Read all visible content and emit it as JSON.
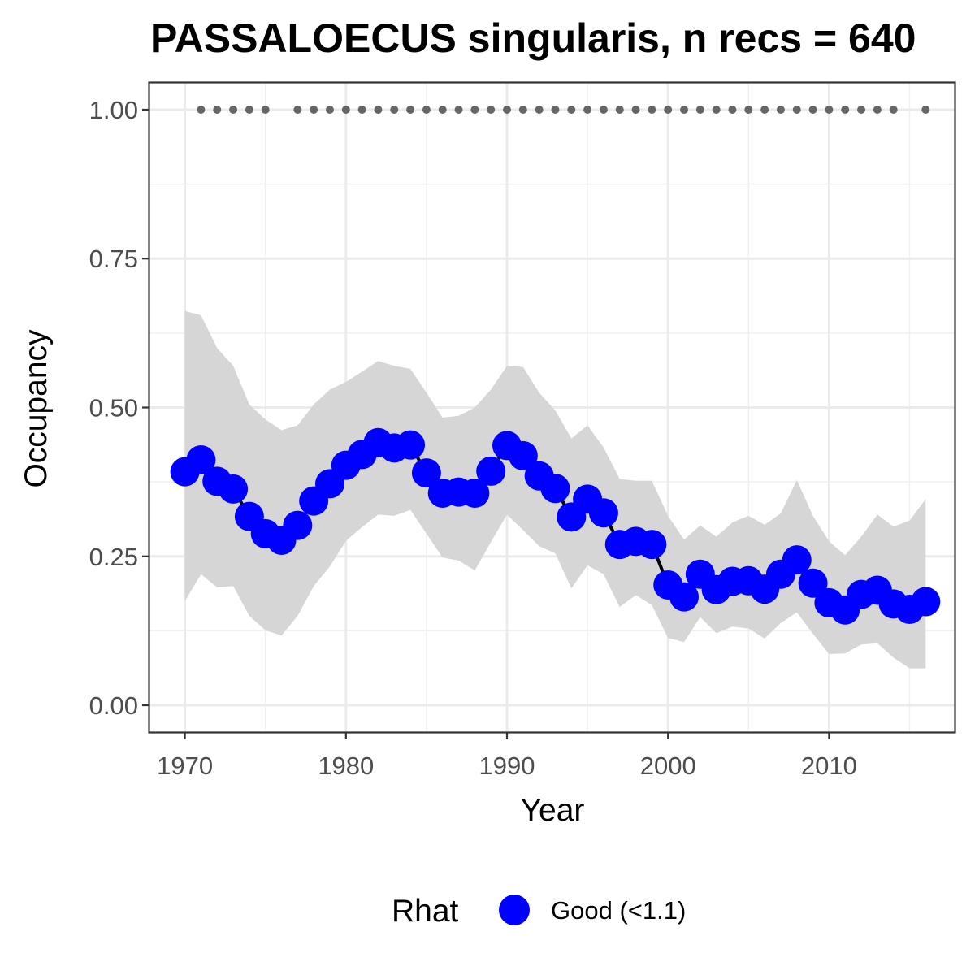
{
  "chart_data": {
    "type": "line",
    "title": "PASSALOECUS singularis, n recs = 640",
    "xlabel": "Year",
    "ylabel": "Occupancy",
    "xlim": [
      1967.8,
      2017.8
    ],
    "ylim": [
      -0.045,
      1.045
    ],
    "x_ticks": [
      1970,
      1980,
      1990,
      2000,
      2010
    ],
    "x_tick_labels": [
      "1970",
      "1980",
      "1990",
      "2000",
      "2010"
    ],
    "y_ticks": [
      0,
      0.25,
      0.5,
      0.75,
      1
    ],
    "y_tick_labels": [
      "0.00",
      "0.25",
      "0.50",
      "0.75",
      "1.00"
    ],
    "grid": true,
    "legend": {
      "position": "bottom",
      "title": "Rhat",
      "entries": [
        {
          "label": "Good (<1.1)",
          "color": "#0000ff"
        }
      ]
    },
    "colors": {
      "points": "#0000ff",
      "line": "#000000",
      "ribbon": "#d6d6d6",
      "record_dots": "#666666"
    },
    "x": [
      1970,
      1971,
      1972,
      1973,
      1974,
      1975,
      1976,
      1977,
      1978,
      1979,
      1980,
      1981,
      1982,
      1983,
      1984,
      1985,
      1986,
      1987,
      1988,
      1989,
      1990,
      1991,
      1992,
      1993,
      1994,
      1995,
      1996,
      1997,
      1998,
      1999,
      2000,
      2001,
      2002,
      2003,
      2004,
      2005,
      2006,
      2007,
      2008,
      2009,
      2010,
      2011,
      2012,
      2013,
      2014,
      2015,
      2016
    ],
    "series": [
      {
        "values": [
          0.392,
          0.412,
          0.376,
          0.363,
          0.317,
          0.288,
          0.277,
          0.302,
          0.343,
          0.372,
          0.403,
          0.421,
          0.441,
          0.432,
          0.437,
          0.39,
          0.356,
          0.358,
          0.356,
          0.393,
          0.436,
          0.419,
          0.385,
          0.364,
          0.316,
          0.346,
          0.323,
          0.27,
          0.275,
          0.27,
          0.202,
          0.182,
          0.22,
          0.194,
          0.208,
          0.209,
          0.195,
          0.22,
          0.244,
          0.205,
          0.172,
          0.16,
          0.186,
          0.193,
          0.17,
          0.161,
          0.174
        ],
        "lower": [
          0.175,
          0.22,
          0.198,
          0.2,
          0.15,
          0.126,
          0.117,
          0.15,
          0.2,
          0.233,
          0.276,
          0.299,
          0.32,
          0.318,
          0.328,
          0.288,
          0.248,
          0.243,
          0.226,
          0.274,
          0.32,
          0.294,
          0.267,
          0.255,
          0.196,
          0.235,
          0.22,
          0.165,
          0.185,
          0.168,
          0.113,
          0.106,
          0.148,
          0.121,
          0.132,
          0.129,
          0.112,
          0.138,
          0.156,
          0.12,
          0.086,
          0.087,
          0.102,
          0.104,
          0.08,
          0.062,
          0.062
        ],
        "upper": [
          0.662,
          0.655,
          0.6,
          0.57,
          0.505,
          0.48,
          0.462,
          0.47,
          0.505,
          0.53,
          0.543,
          0.56,
          0.578,
          0.57,
          0.565,
          0.525,
          0.483,
          0.486,
          0.5,
          0.53,
          0.57,
          0.568,
          0.525,
          0.495,
          0.448,
          0.47,
          0.433,
          0.38,
          0.377,
          0.377,
          0.318,
          0.278,
          0.302,
          0.283,
          0.307,
          0.318,
          0.303,
          0.322,
          0.378,
          0.318,
          0.275,
          0.252,
          0.283,
          0.32,
          0.3,
          0.31,
          0.346
        ]
      }
    ],
    "record_years": [
      1971,
      1972,
      1973,
      1974,
      1975,
      1977,
      1978,
      1979,
      1980,
      1981,
      1982,
      1983,
      1984,
      1985,
      1986,
      1987,
      1988,
      1989,
      1990,
      1991,
      1992,
      1993,
      1994,
      1995,
      1996,
      1997,
      1998,
      1999,
      2000,
      2001,
      2002,
      2003,
      2004,
      2005,
      2006,
      2007,
      2008,
      2009,
      2010,
      2011,
      2012,
      2013,
      2014,
      2016
    ],
    "record_value": 1.0
  }
}
